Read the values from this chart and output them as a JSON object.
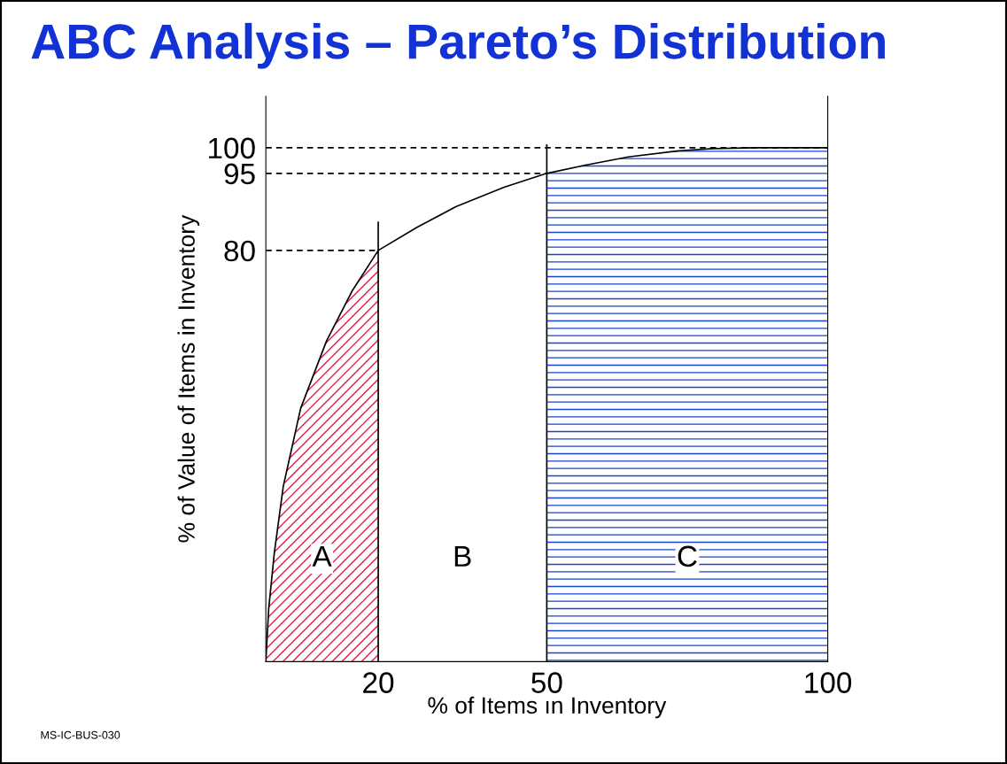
{
  "chart_data": {
    "type": "line",
    "title": "ABC Analysis – Pareto’s Distribution",
    "xlabel": "% of Items ın Inventory",
    "ylabel": "% of Value of Items in Inventory",
    "x": [
      0,
      0.5,
      1.5,
      3.1,
      6.2,
      10.8,
      15.4,
      20,
      26.9,
      33.8,
      42.4,
      50,
      56.9,
      64.5,
      73.6,
      79.6,
      87.2,
      100
    ],
    "series": [
      {
        "color": "#000000",
        "values": [
          0,
          10.2,
          21.1,
          34.1,
          49.3,
          62.4,
          72.2,
          80,
          84.5,
          88.5,
          92.3,
          95,
          96.6,
          98.2,
          99.4,
          99.8,
          100,
          100
        ]
      },
      {
        "type": "area",
        "color": "#e8174a",
        "x": [
          0,
          0.5,
          1.5,
          3.1,
          6.2,
          10.8,
          15.4,
          20
        ],
        "values": [
          0,
          10.2,
          21.1,
          34.1,
          49.3,
          62.4,
          72.2,
          80
        ]
      },
      {
        "type": "area",
        "color": "#1a44d6",
        "x": [
          50,
          56.9,
          64.5,
          73.6,
          79.6,
          87.2,
          100
        ],
        "values": [
          95,
          96.6,
          98.2,
          99.4,
          99.8,
          100,
          100
        ]
      }
    ],
    "xlim": [
      0,
      100
    ],
    "ylim": [
      0,
      110
    ],
    "xticks": [
      20,
      50,
      100
    ],
    "yticks": [
      80,
      95,
      100
    ],
    "grid": false,
    "legend": false,
    "marker": "none",
    "line_style": "solid",
    "ref_lines": [
      {
        "axis": "y",
        "value": 80,
        "color": "#000000",
        "line_style": "dashed"
      },
      {
        "axis": "y",
        "value": 95,
        "color": "#000000",
        "line_style": "dashed"
      },
      {
        "axis": "y",
        "value": 100,
        "color": "#000000",
        "line_style": "dashed"
      },
      {
        "axis": "x",
        "value": 20,
        "color": "#000000",
        "line_style": "solid"
      },
      {
        "axis": "x",
        "value": 50,
        "color": "#000000",
        "line_style": "solid"
      }
    ],
    "annotations": [
      {
        "text": "A",
        "x": 10,
        "y": 20
      },
      {
        "text": "B",
        "x": 35,
        "y": 20
      },
      {
        "text": "C",
        "x": 75,
        "y": 20
      },
      "MS-IC-BUS-030"
    ]
  }
}
